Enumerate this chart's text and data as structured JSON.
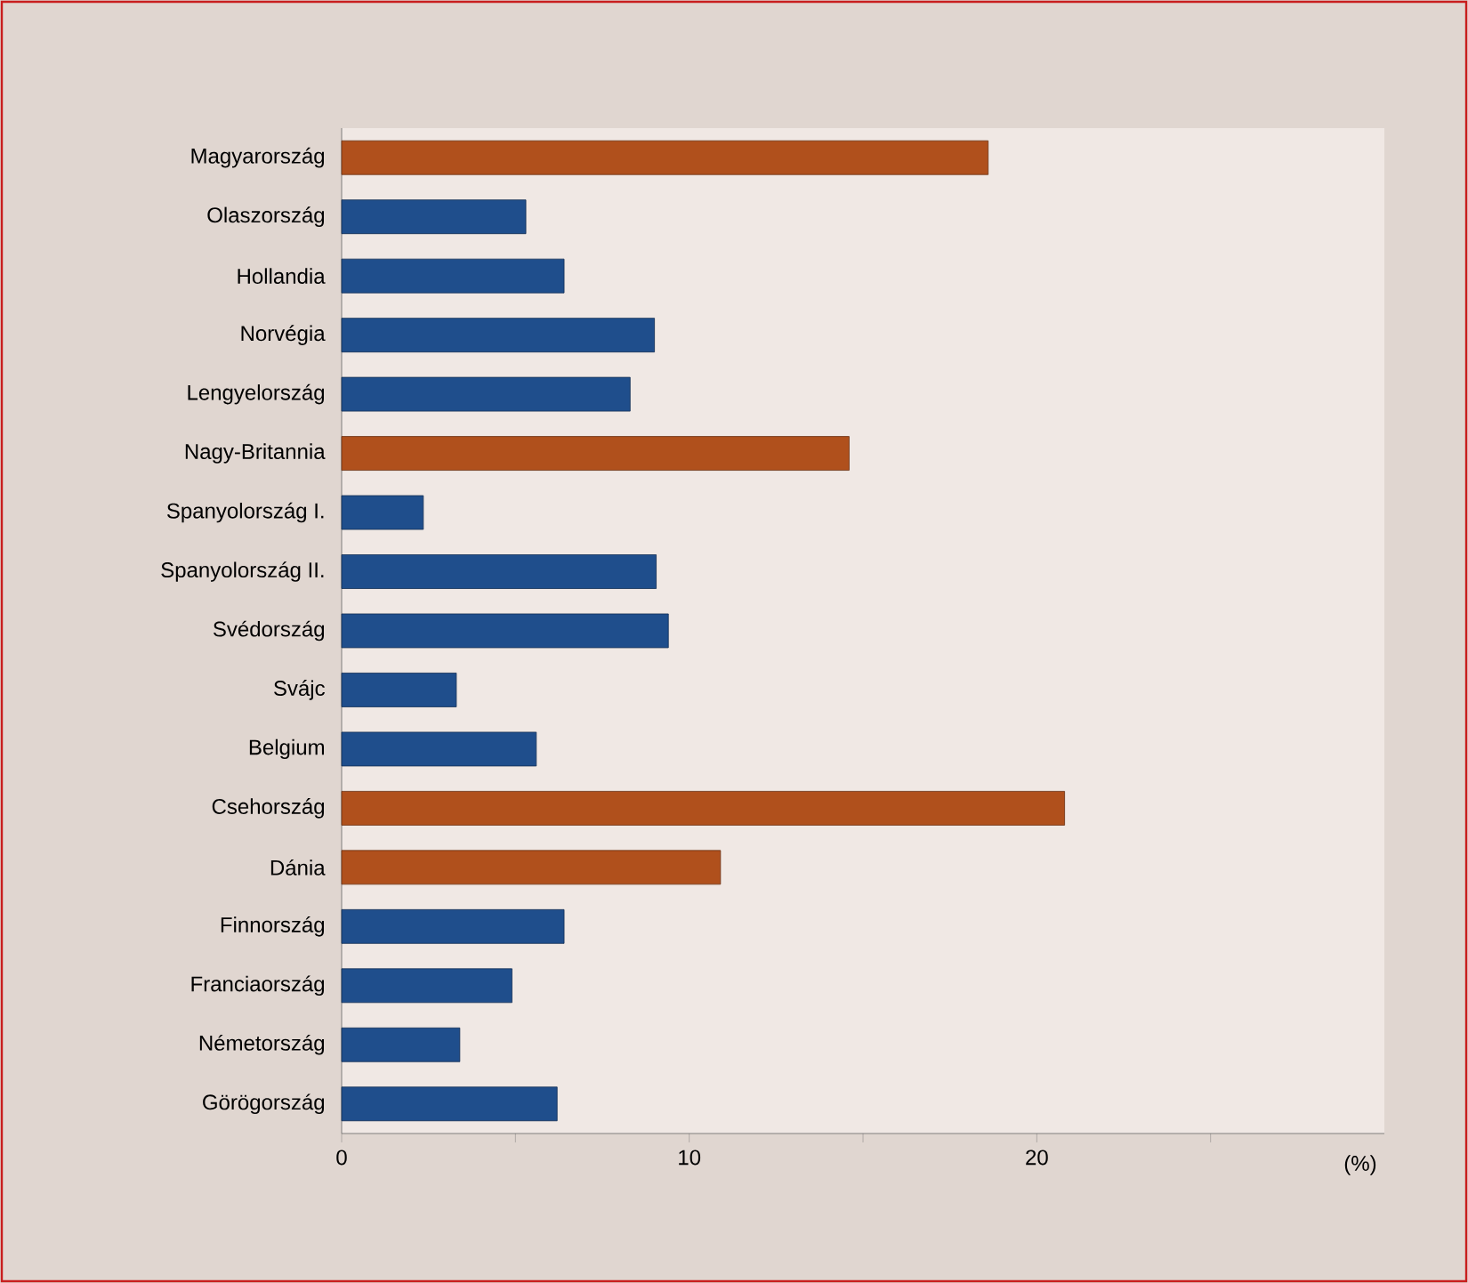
{
  "chart_data": {
    "type": "bar",
    "orientation": "horizontal",
    "xlabel": "(%)",
    "categories": [
      "Magyarország",
      "Olaszország",
      "Hollandia",
      "Norvégia",
      "Lengyelország",
      "Nagy-Britannia",
      "Spanyolország I.",
      "Spanyolország II.",
      "Svédország",
      "Svájc",
      "Belgium",
      "Csehország",
      "Dánia",
      "Finnország",
      "Franciaország",
      "Németország",
      "Görögország"
    ],
    "values": [
      18.6,
      5.3,
      6.4,
      9.0,
      8.3,
      14.6,
      2.35,
      9.05,
      9.4,
      3.3,
      5.6,
      20.8,
      10.9,
      6.4,
      4.9,
      3.4,
      6.2
    ],
    "colors": [
      "#b0501c",
      "#1f4e8c",
      "#1f4e8c",
      "#1f4e8c",
      "#1f4e8c",
      "#b0501c",
      "#1f4e8c",
      "#1f4e8c",
      "#1f4e8c",
      "#1f4e8c",
      "#1f4e8c",
      "#b0501c",
      "#b0501c",
      "#1f4e8c",
      "#1f4e8c",
      "#1f4e8c",
      "#1f4e8c"
    ],
    "xlim": [
      0,
      30
    ],
    "xticks": [
      0,
      {
        "value": 5,
        "label": null
      },
      10,
      {
        "value": 15,
        "label": null
      },
      20,
      {
        "value": 25,
        "label": null
      }
    ],
    "grid": false
  }
}
